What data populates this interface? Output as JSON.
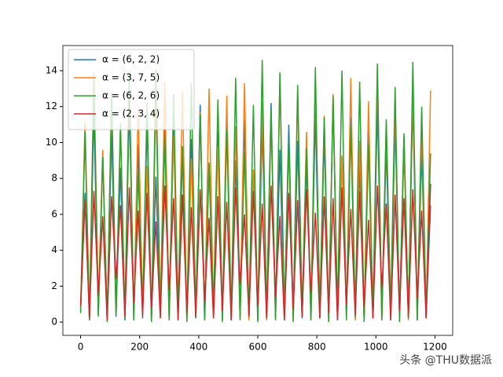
{
  "chart_data": {
    "type": "line",
    "x": [
      0,
      15,
      30,
      45,
      60,
      75,
      90,
      105,
      120,
      135,
      150,
      165,
      180,
      195,
      210,
      225,
      240,
      255,
      270,
      285,
      300,
      315,
      330,
      345,
      360,
      375,
      390,
      405,
      420,
      435,
      450,
      465,
      480,
      495,
      510,
      525,
      540,
      555,
      570,
      585,
      600,
      615,
      630,
      645,
      660,
      675,
      690,
      705,
      720,
      735,
      750,
      765,
      780,
      795,
      810,
      825,
      840,
      855,
      870,
      885,
      900,
      915,
      930,
      945,
      960,
      975,
      990,
      1005,
      1020,
      1035,
      1050,
      1065,
      1080,
      1095,
      1110,
      1125,
      1140,
      1155,
      1170,
      1185
    ],
    "series": [
      {
        "name": "α = (6, 2, 2)",
        "color": "#1f77b4",
        "values": [
          0.6,
          7.2,
          0.1,
          11.8,
          0.4,
          9.3,
          0.2,
          10.5,
          0.3,
          8.6,
          0.1,
          12.0,
          0.5,
          9.9,
          0.2,
          11.2,
          0.1,
          8.1,
          0.4,
          10.8,
          0.2,
          11.5,
          0.1,
          9.4,
          0.3,
          10.2,
          0.2,
          12.1,
          0.1,
          8.8,
          0.4,
          10.6,
          0.2,
          11.9,
          0.1,
          9.0,
          0.3,
          11.3,
          0.2,
          8.4,
          0.1,
          10.9,
          0.4,
          12.2,
          0.2,
          9.6,
          0.1,
          11.0,
          0.3,
          10.1,
          0.2,
          8.9,
          0.1,
          11.6,
          0.3,
          10.4,
          0.2,
          12.3,
          0.1,
          9.2,
          0.5,
          11.4,
          0.2,
          8.7,
          0.1,
          10.7,
          0.3,
          12.0,
          0.2,
          9.8,
          0.1,
          11.1,
          0.4,
          10.3,
          0.2,
          12.4,
          0.1,
          9.5,
          0.3,
          6.5
        ]
      },
      {
        "name": "α = (3, 7, 5)",
        "color": "#ff7f0e",
        "values": [
          0.8,
          11.2,
          0.2,
          13.9,
          1.0,
          9.6,
          0.1,
          12.5,
          0.5,
          10.8,
          0.3,
          13.1,
          0.2,
          11.9,
          0.7,
          8.7,
          0.1,
          12.4,
          0.4,
          13.4,
          0.2,
          10.4,
          0.6,
          12.9,
          0.1,
          9.1,
          0.3,
          11.7,
          0.2,
          13.0,
          0.5,
          9.8,
          0.1,
          12.6,
          0.3,
          10.9,
          0.2,
          13.3,
          0.1,
          8.5,
          0.6,
          12.2,
          0.1,
          11.3,
          0.4,
          13.7,
          0.2,
          9.9,
          0.1,
          12.8,
          0.3,
          10.6,
          0.2,
          13.5,
          0.5,
          11.5,
          0.1,
          12.7,
          0.2,
          9.3,
          0.4,
          13.6,
          0.1,
          10.1,
          0.3,
          12.3,
          0.2,
          13.8,
          0.1,
          11.0,
          0.5,
          12.1,
          0.2,
          9.7,
          0.1,
          13.2,
          0.3,
          10.7,
          0.2,
          12.9
        ]
      },
      {
        "name": "α = (6, 2, 6)",
        "color": "#2ca02c",
        "values": [
          0.5,
          10.6,
          0.1,
          13.5,
          0.3,
          9.2,
          0.0,
          12.8,
          0.4,
          11.1,
          0.2,
          13.9,
          0.1,
          8.4,
          0.6,
          12.2,
          0.0,
          14.1,
          0.3,
          10.3,
          0.1,
          12.7,
          0.5,
          9.8,
          0.0,
          13.3,
          0.2,
          11.6,
          0.1,
          8.9,
          0.4,
          12.4,
          0.0,
          10.7,
          0.2,
          13.6,
          0.1,
          9.5,
          0.3,
          12.1,
          0.0,
          14.6,
          0.2,
          11.8,
          0.1,
          13.9,
          0.4,
          10.2,
          0.0,
          13.2,
          0.3,
          9.7,
          0.1,
          14.2,
          0.2,
          11.4,
          0.0,
          12.6,
          0.5,
          14.0,
          0.1,
          10.9,
          0.3,
          13.4,
          0.0,
          9.9,
          0.2,
          14.4,
          0.1,
          11.3,
          0.4,
          13.1,
          0.0,
          10.5,
          0.2,
          14.5,
          0.1,
          12.0,
          0.3,
          9.4
        ]
      },
      {
        "name": "α = (2, 3, 4)",
        "color": "#d62728",
        "values": [
          0.9,
          6.8,
          0.2,
          7.3,
          1.5,
          5.9,
          0.1,
          7.0,
          2.4,
          6.5,
          0.3,
          7.5,
          1.1,
          6.2,
          0.4,
          7.2,
          0.8,
          5.6,
          0.2,
          7.6,
          1.8,
          6.9,
          0.1,
          7.1,
          0.5,
          6.4,
          0.3,
          7.4,
          1.2,
          5.8,
          0.2,
          7.0,
          0.6,
          6.7,
          0.1,
          7.5,
          2.1,
          6.0,
          0.3,
          7.3,
          0.9,
          6.6,
          0.2,
          7.6,
          1.4,
          5.9,
          0.1,
          7.2,
          0.7,
          6.8,
          0.3,
          7.4,
          1.6,
          6.1,
          0.2,
          7.0,
          0.5,
          6.9,
          0.1,
          7.5,
          1.0,
          6.3,
          0.4,
          7.3,
          0.8,
          5.7,
          0.2,
          7.6,
          1.9,
          6.6,
          0.1,
          7.1,
          0.6,
          6.9,
          0.3,
          7.4,
          1.3,
          6.2,
          0.2,
          7.7
        ]
      }
    ],
    "xlim": [
      -60,
      1260
    ],
    "ylim": [
      -0.74,
      15.4
    ],
    "xticks": [
      0,
      200,
      400,
      600,
      800,
      1000,
      1200
    ],
    "yticks": [
      0,
      2,
      4,
      6,
      8,
      10,
      12,
      14
    ],
    "legend": "upper left",
    "watermark": "头条 @THU数据派"
  }
}
